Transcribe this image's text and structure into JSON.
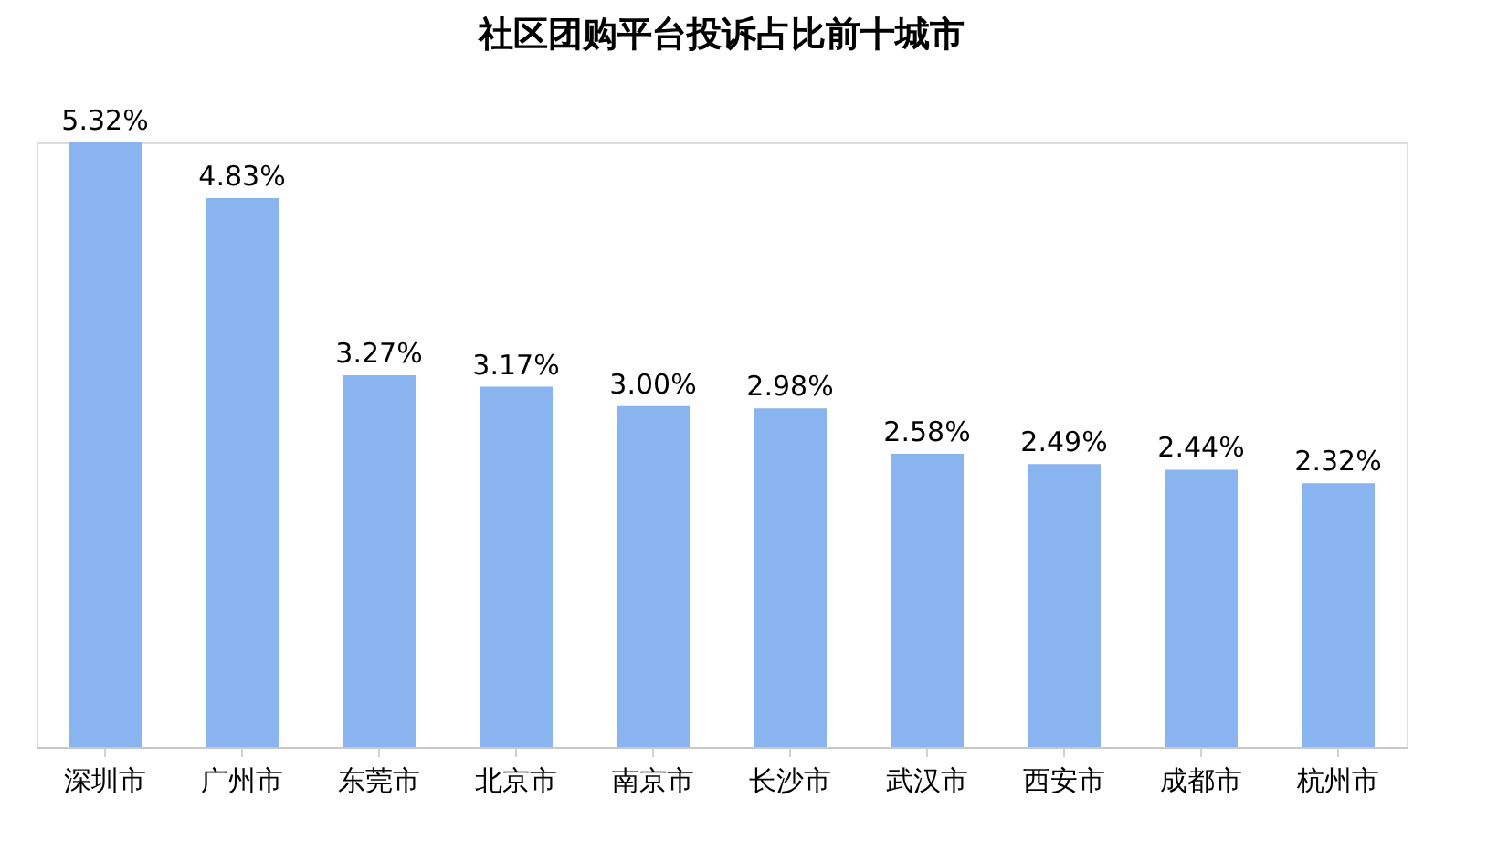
{
  "chart_data": {
    "type": "bar",
    "title": "社区团购平台投诉占比前十城市",
    "categories": [
      "深圳市",
      "广州市",
      "东莞市",
      "北京市",
      "南京市",
      "长沙市",
      "武汉市",
      "西安市",
      "成都市",
      "杭州市"
    ],
    "values": [
      5.32,
      4.83,
      3.27,
      3.17,
      3.0,
      2.98,
      2.58,
      2.49,
      2.44,
      2.32
    ],
    "value_labels": [
      "5.32%",
      "4.83%",
      "3.27%",
      "3.17%",
      "3.00%",
      "2.98%",
      "2.58%",
      "2.49%",
      "2.44%",
      "2.32%"
    ],
    "color": "#8ab4ef",
    "grid": false,
    "tick_labels": "x"
  }
}
